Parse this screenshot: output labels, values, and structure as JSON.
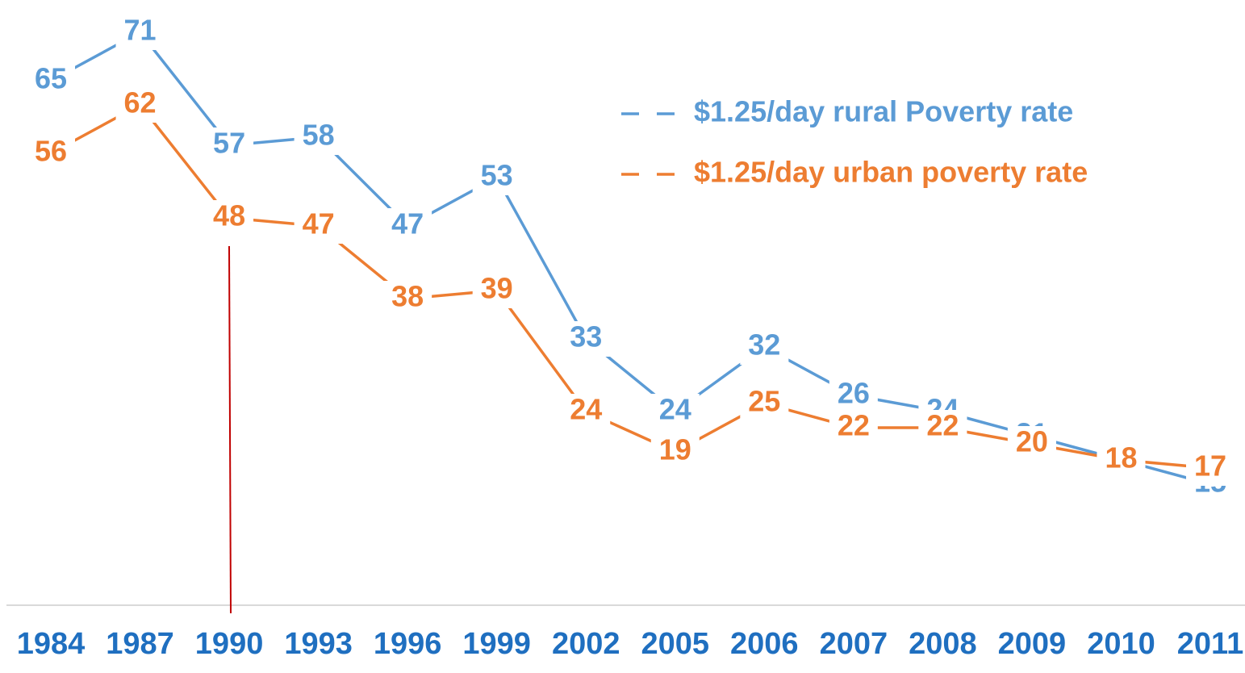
{
  "chart_data": {
    "type": "line",
    "categories": [
      "1984",
      "1987",
      "1990",
      "1993",
      "1996",
      "1999",
      "2002",
      "2005",
      "2006",
      "2007",
      "2008",
      "2009",
      "2010",
      "2011"
    ],
    "series": [
      {
        "name": "$1.25/day rural Poverty rate",
        "color": "#5b9bd5",
        "values": [
          65,
          71,
          57,
          58,
          47,
          53,
          33,
          24,
          32,
          26,
          24,
          21,
          18,
          15
        ]
      },
      {
        "name": "$1.25/day urban poverty rate",
        "color": "#ed7d31",
        "values": [
          56,
          62,
          48,
          47,
          38,
          39,
          24,
          19,
          25,
          22,
          22,
          20,
          18,
          17
        ]
      }
    ],
    "ylim": [
      0,
      75
    ],
    "grid": false,
    "legend": "top-right"
  }
}
